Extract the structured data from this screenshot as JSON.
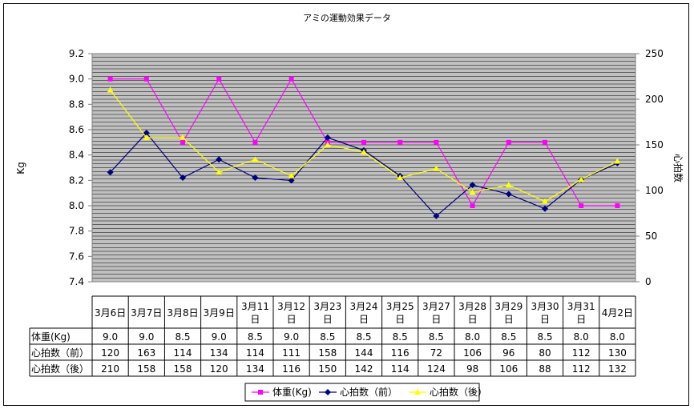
{
  "chart_data": {
    "type": "line",
    "title": "アミの運動効果データ",
    "ylabel_left": "Kg",
    "ylabel_right": "心拍数",
    "ylim_left": [
      7.4,
      9.2
    ],
    "yticks_left": [
      "9.2",
      "9.0",
      "8.8",
      "8.6",
      "8.4",
      "8.2",
      "8.0",
      "7.8",
      "7.6",
      "7.4"
    ],
    "ylim_right": [
      0,
      250
    ],
    "yticks_right": [
      "250",
      "200",
      "150",
      "100",
      "50",
      "0"
    ],
    "grid": true,
    "plot_background": "#c0c0c0",
    "legend_position": "bottom",
    "categories": [
      "3月6日",
      "3月7日",
      "3月8日",
      "3月9日",
      "3月11日",
      "3月12日",
      "3月23日",
      "3月24日",
      "3月25日",
      "3月27日",
      "3月28日",
      "3月29日",
      "3月30日",
      "3月31日",
      "4月2日"
    ],
    "category_lines": [
      [
        "3月6日"
      ],
      [
        "3月7日"
      ],
      [
        "3月8日"
      ],
      [
        "3月9日"
      ],
      [
        "3月11",
        "日"
      ],
      [
        "3月12",
        "日"
      ],
      [
        "3月23",
        "日"
      ],
      [
        "3月24",
        "日"
      ],
      [
        "3月25",
        "日"
      ],
      [
        "3月27",
        "日"
      ],
      [
        "3月28",
        "日"
      ],
      [
        "3月29",
        "日"
      ],
      [
        "3月30",
        "日"
      ],
      [
        "3月31",
        "日"
      ],
      [
        "4月2日"
      ]
    ],
    "series": [
      {
        "name": "体重(Kg)",
        "axis": "left",
        "color": "#ff00ff",
        "marker": "square",
        "values": [
          9.0,
          9.0,
          8.5,
          9.0,
          8.5,
          9.0,
          8.5,
          8.5,
          8.5,
          8.5,
          8.0,
          8.5,
          8.5,
          8.0,
          8.0
        ]
      },
      {
        "name": "心拍数（前）",
        "axis": "right",
        "color": "#000080",
        "marker": "diamond",
        "values": [
          120,
          163,
          114,
          134,
          114,
          111,
          158,
          144,
          116,
          72,
          106,
          96,
          80,
          112,
          130
        ]
      },
      {
        "name": "心拍数（後）",
        "axis": "right",
        "color": "#ffff00",
        "marker": "triangle",
        "values": [
          210,
          158,
          158,
          120,
          134,
          116,
          150,
          142,
          114,
          124,
          98,
          106,
          88,
          112,
          132
        ]
      }
    ]
  },
  "table": {
    "rows": [
      {
        "label": "体重(Kg)",
        "values": [
          "9.0",
          "9.0",
          "8.5",
          "9.0",
          "8.5",
          "9.0",
          "8.5",
          "8.5",
          "8.5",
          "8.5",
          "8.0",
          "8.5",
          "8.5",
          "8.0",
          "8.0"
        ]
      },
      {
        "label": "心拍数（前）",
        "values": [
          "120",
          "163",
          "114",
          "134",
          "114",
          "111",
          "158",
          "144",
          "116",
          "72",
          "106",
          "96",
          "80",
          "112",
          "130"
        ]
      },
      {
        "label": "心拍数（後）",
        "values": [
          "210",
          "158",
          "158",
          "120",
          "134",
          "116",
          "150",
          "142",
          "114",
          "124",
          "98",
          "106",
          "88",
          "112",
          "132"
        ]
      }
    ]
  }
}
